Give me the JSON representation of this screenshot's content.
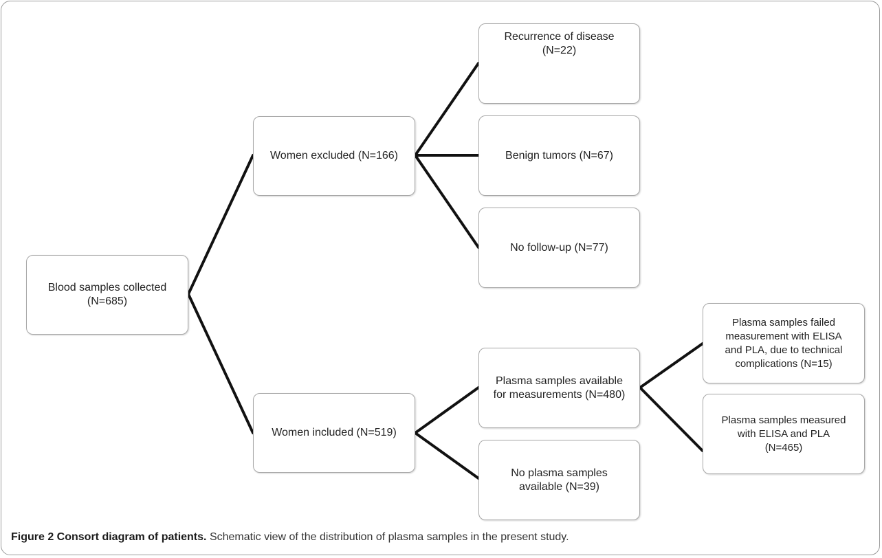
{
  "nodes": {
    "blood": {
      "line1": "Blood samples collected",
      "line2": "(N=685)"
    },
    "excluded": {
      "line1": "Women excluded (N=166)"
    },
    "included": {
      "line1": "Women included (N=519)"
    },
    "recurrence": {
      "line1": "Recurrence of disease",
      "line2": "(N=22)"
    },
    "benign": {
      "line1": "Benign tumors (N=67)"
    },
    "no_followup": {
      "line1": "No follow-up (N=77)"
    },
    "available": {
      "line1": "Plasma samples available",
      "line2": "for measurements (N=480)"
    },
    "no_plasma": {
      "line1": "No plasma samples",
      "line2": "available (N=39)"
    },
    "failed": {
      "line1": "Plasma samples failed",
      "line2": "measurement with ELISA",
      "line3": "and PLA, due to technical",
      "line4": "complications (N=15)"
    },
    "measured": {
      "line1": "Plasma samples measured",
      "line2": "with ELISA and PLA",
      "line3": "(N=465)"
    }
  },
  "caption": {
    "label": "Figure 2 Consort diagram of patients.",
    "text": "Schematic view of the distribution of plasma samples in the present study."
  }
}
